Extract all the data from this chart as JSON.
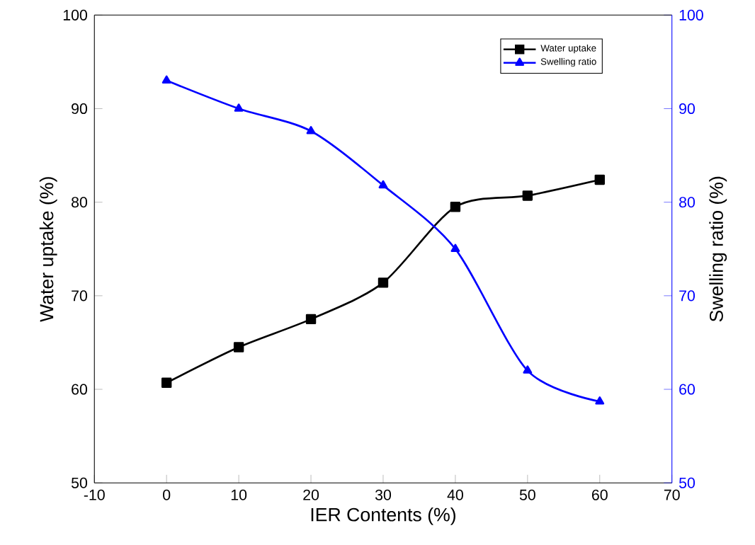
{
  "chart_data": {
    "type": "line",
    "xlabel": "IER Contents (%)",
    "ylabel": "Water uptake (%)",
    "y2label": "Swelling ratio (%)",
    "x": [
      0,
      10,
      20,
      30,
      40,
      50,
      60
    ],
    "series": [
      {
        "name": "Water uptake",
        "color": "#000000",
        "marker": "square",
        "values": [
          60.7,
          64.5,
          67.5,
          71.4,
          79.5,
          80.7,
          82.4
        ]
      },
      {
        "name": "Swelling ratio",
        "color": "#0000ff",
        "marker": "triangle",
        "axis": "y2",
        "values": [
          93,
          90,
          87.6,
          81.8,
          75,
          62,
          58.7
        ]
      }
    ],
    "xlim": [
      -10,
      70
    ],
    "xticks": [
      -10,
      0,
      10,
      20,
      30,
      40,
      50,
      60,
      70
    ],
    "ylim": [
      50,
      100
    ],
    "yticks": [
      50,
      60,
      70,
      80,
      90,
      100
    ],
    "y2lim": [
      50,
      100
    ],
    "y2ticks": [
      50,
      60,
      70,
      80,
      90,
      100
    ],
    "legend": "top right",
    "grid": false
  }
}
